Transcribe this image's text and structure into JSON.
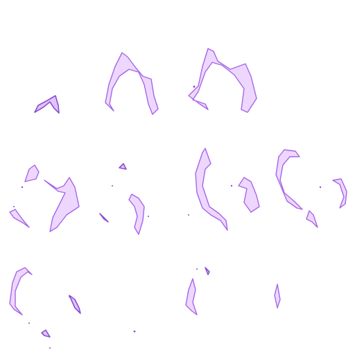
{
  "canvas": {
    "background": "#ffffff",
    "stroke_color": "#a566e6",
    "fill_color": "#cd8cff"
  },
  "grid": {
    "rows": 3,
    "columns": 4,
    "populated_cells": 11
  }
}
